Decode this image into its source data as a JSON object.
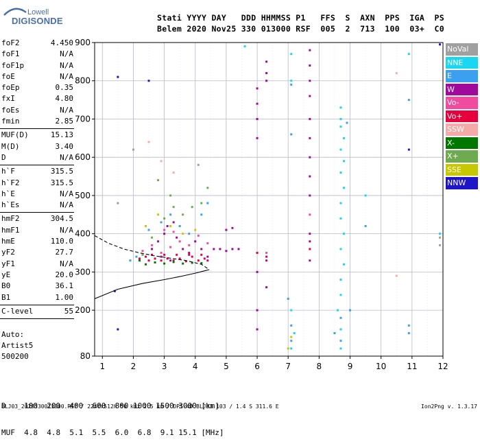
{
  "logo": {
    "line1": "Lowell",
    "line2": "DIGISONDE"
  },
  "header": {
    "row1": "Stati YYYY DAY   DDD HHMMSS P1   FFS  S  AXN  PPS  IGA  PS",
    "row2": "Belem 2020 Nov25 330 013000 RSF  005  2  713  100  03+  C0"
  },
  "params": {
    "group1": [
      {
        "label": "foF2",
        "value": "4.450"
      },
      {
        "label": "foF1",
        "value": "N/A"
      },
      {
        "label": "foF1p",
        "value": "N/A"
      },
      {
        "label": "foE",
        "value": "N/A"
      },
      {
        "label": "foEp",
        "value": "0.35"
      },
      {
        "label": "fxI",
        "value": "4.80"
      },
      {
        "label": "foEs",
        "value": "N/A"
      },
      {
        "label": "fmin",
        "value": "2.85"
      }
    ],
    "group2": [
      {
        "label": "MUF(D)",
        "value": "15.13"
      },
      {
        "label": "M(D)",
        "value": "3.40"
      },
      {
        "label": "D",
        "value": "N/A"
      }
    ],
    "group3": [
      {
        "label": "h`F",
        "value": "315.5"
      },
      {
        "label": "h`F2",
        "value": "315.5"
      },
      {
        "label": "h`E",
        "value": "N/A"
      },
      {
        "label": "h`Es",
        "value": "N/A"
      }
    ],
    "group4": [
      {
        "label": "hmF2",
        "value": "304.5"
      },
      {
        "label": "hmF1",
        "value": "N/A"
      },
      {
        "label": "hmE",
        "value": "110.0"
      },
      {
        "label": "yF2",
        "value": "27.7"
      },
      {
        "label": "yF1",
        "value": "N/A"
      },
      {
        "label": "yE",
        "value": "20.0"
      },
      {
        "label": "B0",
        "value": "36.1"
      },
      {
        "label": "B1",
        "value": "1.00"
      }
    ],
    "group5": [
      {
        "label": "C-level",
        "value": "55"
      }
    ]
  },
  "auto": {
    "line1": "Auto:",
    "line2": "Artist5",
    "line3": "500200"
  },
  "legend": [
    {
      "label": "NoVal",
      "color": "#a0a0a0"
    },
    {
      "label": "NNE",
      "color": "#19d7f0"
    },
    {
      "label": "E",
      "color": "#3ca0f0"
    },
    {
      "label": "W",
      "color": "#a0099b"
    },
    {
      "label": "Vo-",
      "color": "#f04b9e"
    },
    {
      "label": "Vo+",
      "color": "#e6003c"
    },
    {
      "label": "SSW",
      "color": "#f5aaaa"
    },
    {
      "label": "X-",
      "color": "#007800"
    },
    {
      "label": "X+",
      "color": "#6eaa50"
    },
    {
      "label": "SSE",
      "color": "#c8c800"
    },
    {
      "label": "NNW",
      "color": "#1e14c8"
    }
  ],
  "muf_table": {
    "row1": "D    100  200  400  600  800 1000 1500 3000 [km]",
    "row2": "MUF  4.8  4.8  5.1  5.5  6.0  6.8  9.1 15.1 [MHz]"
  },
  "footer": {
    "left": "BLJ03_2020330013000.RSF / 224fx512h 50 kHz 2.5 km / DPS-4D BLJ03 103 / 1.4 S 311.6 E",
    "right": "Ion2Png v. 1.3.17"
  },
  "chart_data": {
    "type": "scatter",
    "title": "",
    "xlabel": "",
    "ylabel": "",
    "xlim": [
      0.75,
      12
    ],
    "ylim": [
      80,
      900
    ],
    "x_ticks": [
      1,
      2,
      3,
      4,
      5,
      6,
      7,
      8,
      9,
      10,
      11,
      12
    ],
    "y_ticks": [
      80,
      200,
      300,
      400,
      500,
      600,
      700,
      800,
      900
    ],
    "grid": true,
    "legend_position": "right",
    "series": [
      {
        "name": "W",
        "color": "#a0099b",
        "points": [
          [
            2.6,
            360
          ],
          [
            2.8,
            380
          ],
          [
            3.0,
            400
          ],
          [
            3.1,
            420
          ],
          [
            3.3,
            430
          ],
          [
            3.4,
            390
          ],
          [
            3.6,
            360
          ],
          [
            3.8,
            350
          ],
          [
            4.0,
            380
          ],
          [
            4.2,
            360
          ],
          [
            4.4,
            340
          ],
          [
            4.6,
            360
          ],
          [
            4.8,
            360
          ],
          [
            5.0,
            355
          ],
          [
            5.2,
            360
          ],
          [
            5.4,
            360
          ],
          [
            5.0,
            410
          ],
          [
            5.2,
            415
          ],
          [
            2.9,
            340
          ],
          [
            3.2,
            330
          ],
          [
            6.0,
            780
          ],
          [
            6.0,
            740
          ],
          [
            6.0,
            700
          ],
          [
            6.0,
            650
          ],
          [
            6.3,
            850
          ],
          [
            6.3,
            820
          ],
          [
            6.3,
            800
          ],
          [
            7.7,
            880
          ],
          [
            7.7,
            840
          ],
          [
            7.7,
            800
          ],
          [
            7.7,
            760
          ],
          [
            7.7,
            700
          ],
          [
            7.7,
            650
          ],
          [
            7.7,
            600
          ],
          [
            7.7,
            550
          ],
          [
            7.7,
            500
          ],
          [
            6.0,
            300
          ],
          [
            6.3,
            330
          ],
          [
            6.3,
            260
          ],
          [
            6.0,
            200
          ],
          [
            6.0,
            150
          ],
          [
            7.7,
            400
          ],
          [
            7.7,
            380
          ],
          [
            7.7,
            330
          ]
        ]
      },
      {
        "name": "Vo+",
        "color": "#e6003c",
        "points": [
          [
            2.5,
            330
          ],
          [
            2.7,
            335
          ],
          [
            2.9,
            330
          ],
          [
            3.1,
            335
          ],
          [
            3.3,
            330
          ],
          [
            3.5,
            335
          ],
          [
            3.7,
            328
          ],
          [
            3.9,
            340
          ],
          [
            4.1,
            330
          ],
          [
            4.3,
            335
          ],
          [
            2.6,
            345
          ],
          [
            3.0,
            345
          ],
          [
            3.4,
            345
          ],
          [
            3.8,
            345
          ],
          [
            4.2,
            345
          ],
          [
            2.4,
            340
          ],
          [
            2.2,
            335
          ],
          [
            4.4,
            330
          ],
          [
            6.0,
            350
          ],
          [
            6.3,
            340
          ],
          [
            7.7,
            360
          ]
        ]
      },
      {
        "name": "Vo-",
        "color": "#f04b9e",
        "points": [
          [
            2.3,
            355
          ],
          [
            2.6,
            370
          ],
          [
            2.9,
            350
          ],
          [
            3.2,
            365
          ],
          [
            3.5,
            380
          ],
          [
            3.8,
            370
          ],
          [
            4.1,
            395
          ],
          [
            4.4,
            375
          ],
          [
            3.0,
            410
          ],
          [
            3.3,
            405
          ],
          [
            6.3,
            350
          ],
          [
            7.7,
            450
          ]
        ]
      },
      {
        "name": "X-",
        "color": "#007800",
        "points": [
          [
            2.4,
            320
          ],
          [
            2.7,
            325
          ],
          [
            3.0,
            322
          ],
          [
            3.3,
            326
          ],
          [
            3.6,
            322
          ],
          [
            3.9,
            324
          ],
          [
            2.2,
            330
          ],
          [
            4.2,
            323
          ]
        ]
      },
      {
        "name": "X+",
        "color": "#6eaa50",
        "points": [
          [
            2.3,
            345
          ],
          [
            2.6,
            390
          ],
          [
            3.0,
            440
          ],
          [
            3.3,
            470
          ],
          [
            3.6,
            450
          ],
          [
            3.9,
            470
          ],
          [
            4.2,
            480
          ],
          [
            4.4,
            520
          ],
          [
            2.8,
            540
          ],
          [
            3.2,
            500
          ]
        ]
      },
      {
        "name": "E",
        "color": "#3ca0f0",
        "points": [
          [
            1.9,
            330
          ],
          [
            2.1,
            340
          ],
          [
            2.5,
            410
          ],
          [
            2.9,
            430
          ],
          [
            3.2,
            450
          ],
          [
            3.5,
            420
          ],
          [
            3.8,
            400
          ],
          [
            4.2,
            450
          ],
          [
            4.4,
            480
          ],
          [
            7.1,
            790
          ],
          [
            7.1,
            660
          ],
          [
            8.5,
            140
          ],
          [
            8.7,
            150
          ],
          [
            8.7,
            120
          ],
          [
            8.7,
            180
          ],
          [
            9.0,
            200
          ],
          [
            9.5,
            420
          ],
          [
            10.9,
            750
          ],
          [
            10.9,
            160
          ],
          [
            10.9,
            140
          ],
          [
            7.1,
            120
          ],
          [
            7.1,
            160
          ],
          [
            7.0,
            230
          ],
          [
            8.9,
            690
          ]
        ]
      },
      {
        "name": "NNE",
        "color": "#19d7f0",
        "points": [
          [
            7.1,
            870
          ],
          [
            7.1,
            800
          ],
          [
            8.7,
            730
          ],
          [
            8.7,
            700
          ],
          [
            8.7,
            680
          ],
          [
            8.8,
            650
          ],
          [
            8.7,
            620
          ],
          [
            8.8,
            590
          ],
          [
            8.7,
            560
          ],
          [
            8.8,
            520
          ],
          [
            8.7,
            480
          ],
          [
            8.7,
            440
          ],
          [
            8.8,
            400
          ],
          [
            8.7,
            360
          ],
          [
            8.8,
            320
          ],
          [
            8.7,
            280
          ],
          [
            8.7,
            240
          ],
          [
            8.6,
            200
          ],
          [
            8.7,
            150
          ],
          [
            8.7,
            100
          ],
          [
            7.1,
            100
          ],
          [
            7.2,
            140
          ],
          [
            7.1,
            200
          ],
          [
            10.9,
            870
          ],
          [
            11.9,
            400
          ],
          [
            5.6,
            890
          ],
          [
            9.5,
            500
          ]
        ]
      },
      {
        "name": "SSW",
        "color": "#f5aaaa",
        "points": [
          [
            2.5,
            640
          ],
          [
            2.9,
            590
          ],
          [
            3.3,
            560
          ],
          [
            10.5,
            820
          ],
          [
            10.5,
            290
          ]
        ]
      },
      {
        "name": "SSE",
        "color": "#c8c800",
        "points": [
          [
            2.4,
            420
          ],
          [
            2.8,
            450
          ],
          [
            3.2,
            420
          ],
          [
            3.6,
            400
          ],
          [
            4.0,
            410
          ],
          [
            7.0,
            100
          ],
          [
            7.1,
            130
          ]
        ]
      },
      {
        "name": "NNW",
        "color": "#1e14c8",
        "points": [
          [
            1.5,
            810
          ],
          [
            2.5,
            800
          ],
          [
            11.9,
            895
          ],
          [
            10.9,
            620
          ],
          [
            1.4,
            250
          ],
          [
            1.5,
            150
          ]
        ]
      },
      {
        "name": "NoVal",
        "color": "#a0a0a0",
        "points": [
          [
            1.5,
            480
          ],
          [
            2.0,
            620
          ],
          [
            4.1,
            580
          ],
          [
            11.9,
            370
          ],
          [
            11.9,
            390
          ]
        ]
      }
    ],
    "curves": [
      {
        "style": "solid",
        "x": [
          0.75,
          1.5,
          2.3,
          3.0,
          3.5,
          4.0,
          4.3,
          4.45
        ],
        "y": [
          230,
          255,
          270,
          280,
          288,
          297,
          303,
          306
        ]
      },
      {
        "style": "dashed",
        "x": [
          0.75,
          1.2,
          1.7,
          2.2,
          2.7,
          3.2,
          3.7,
          4.2,
          4.45
        ],
        "y": [
          395,
          375,
          360,
          350,
          342,
          336,
          330,
          320,
          306
        ]
      }
    ]
  }
}
